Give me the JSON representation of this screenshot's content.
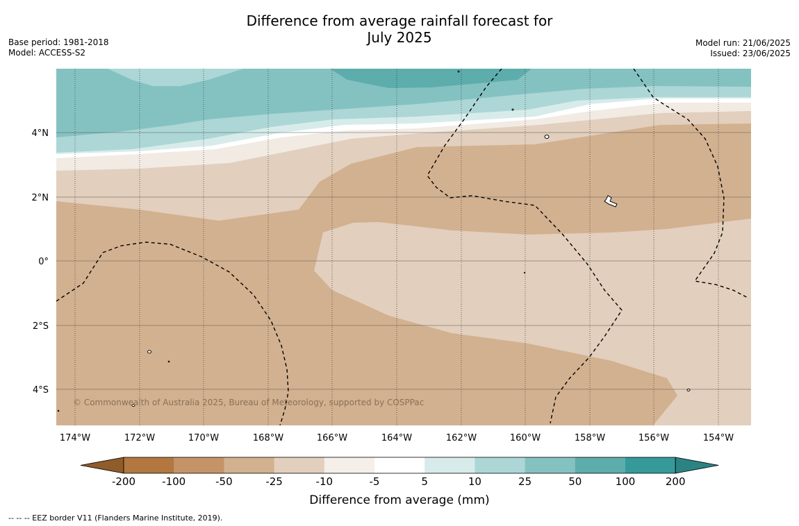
{
  "title_line1": "Difference from average rainfall forecast for",
  "title_line2": "July 2025",
  "base_period": "Base period: 1981-2018",
  "model": "Model: ACCESS-S2",
  "model_run": "Model run: 21/06/2025",
  "issued": "Issued: 23/06/2025",
  "copyright": "© Commonwealth of Australia 2025, Bureau of Meteorology, supported by COSPPac",
  "lat_labels": [
    "4°N",
    "2°N",
    "0°",
    "2°S",
    "4°S"
  ],
  "lon_labels": [
    "174°W",
    "172°W",
    "170°W",
    "168°W",
    "166°W",
    "164°W",
    "162°W",
    "160°W",
    "158°W",
    "156°W",
    "154°W"
  ],
  "colorbar": {
    "label": "Difference from average (mm)",
    "ticks": [
      "-200",
      "-100",
      "-50",
      "-25",
      "-10",
      "-5",
      "5",
      "10",
      "25",
      "50",
      "100",
      "200"
    ],
    "colors": [
      "#8f5c2a",
      "#b27840",
      "#c49468",
      "#d2b190",
      "#e2cfbd",
      "#f4efe9",
      "#ffffff",
      "#d7ecea",
      "#acd7d6",
      "#84c2c1",
      "#5cadac",
      "#36999a",
      "#2c8384"
    ]
  },
  "legend_footer": "--  --  -- EEZ border V11 (Flanders Marine Institute, 2019).",
  "map_colors": {
    "dry50": "#d2b190",
    "dry25": "#e2cfbd",
    "dry10": "#f1ebe4",
    "neutral": "#ffffff",
    "wet5": "#d7ecea",
    "wet10": "#acd7d6",
    "wet25": "#84c2c1",
    "wet50": "#5cadac"
  }
}
